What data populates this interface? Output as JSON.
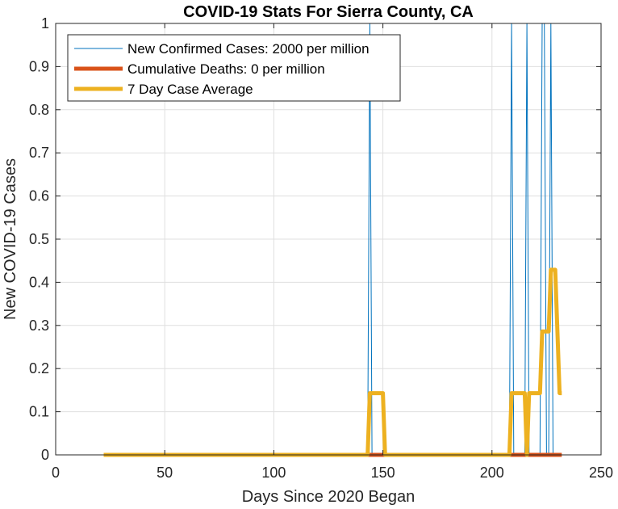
{
  "chart_data": {
    "type": "line",
    "title": "COVID-19 Stats For Sierra County, CA",
    "xlabel": "Days Since 2020 Began",
    "ylabel": "New COVID-19 Cases",
    "xlim": [
      0,
      250
    ],
    "ylim": [
      0,
      1
    ],
    "xticks": [
      0,
      50,
      100,
      150,
      200,
      250
    ],
    "xtick_labels": [
      "0",
      "50",
      "100",
      "150",
      "200",
      "250"
    ],
    "yticks": [
      0,
      0.1,
      0.2,
      0.3,
      0.4,
      0.5,
      0.6,
      0.7,
      0.8,
      0.9,
      1
    ],
    "ytick_labels": [
      "0",
      "0.1",
      "0.2",
      "0.3",
      "0.4",
      "0.5",
      "0.6",
      "0.7",
      "0.8",
      "0.9",
      "1"
    ],
    "grid": true,
    "legend_position": "top-left",
    "series": [
      {
        "name": "New Confirmed Cases: 2000 per million",
        "color": "#0072BD",
        "x": [
          22,
          143,
          144,
          145,
          208,
          209,
          210,
          215,
          216,
          217,
          222,
          223,
          224,
          225,
          226,
          227,
          228,
          232
        ],
        "y": [
          0,
          0,
          1,
          0,
          0,
          1,
          0,
          0,
          1,
          0,
          0,
          1,
          1,
          0,
          0,
          1,
          0,
          0
        ]
      },
      {
        "name": "Cumulative Deaths: 0 per million",
        "color": "#D95319",
        "x": [
          22,
          232
        ],
        "y": [
          0,
          0
        ]
      },
      {
        "name": "7 Day Case Average",
        "color": "#EDB120",
        "x": [
          22,
          143,
          144,
          150,
          151,
          208,
          209,
          215,
          216,
          217,
          222,
          223,
          226,
          227,
          229,
          231,
          232
        ],
        "y": [
          0,
          0,
          0.143,
          0.143,
          0,
          0,
          0.143,
          0.143,
          0,
          0.143,
          0.143,
          0.286,
          0.286,
          0.429,
          0.429,
          0.143,
          0.143
        ]
      }
    ]
  }
}
